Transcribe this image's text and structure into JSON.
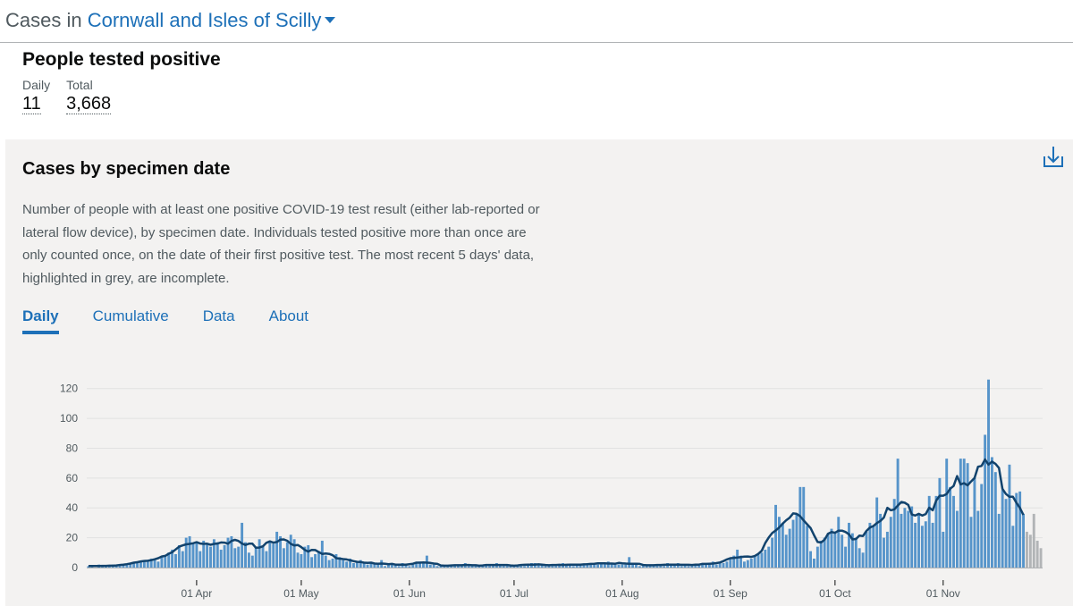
{
  "header": {
    "prefix": "Cases in ",
    "area": "Cornwall and Isles of Scilly"
  },
  "summary": {
    "title": "People tested positive",
    "daily_label": "Daily",
    "daily_value": "11",
    "total_label": "Total",
    "total_value": "3,668"
  },
  "card": {
    "title": "Cases by specimen date",
    "description": "Number of people with at least one positive COVID-19 test result (either lab-reported or lateral flow device), by specimen date. Individuals tested positive more than once are only counted once, on the date of their first positive test. The most recent 5 days' data, highlighted in grey, are incomplete.",
    "download_icon": "download-icon"
  },
  "tabs": [
    {
      "label": "Daily",
      "active": true
    },
    {
      "label": "Cumulative",
      "active": false
    },
    {
      "label": "Data",
      "active": false
    },
    {
      "label": "About",
      "active": false
    }
  ],
  "colors": {
    "bar": "#5694ca",
    "bar_incomplete": "#b1b4b6",
    "average_line": "#12436d",
    "link": "#1d70b8"
  },
  "chart_data": {
    "type": "bar",
    "title": "Cases by specimen date",
    "ylim": [
      0,
      130
    ],
    "yticks": [
      0,
      20,
      40,
      60,
      80,
      100,
      120
    ],
    "x_tick_labels": [
      {
        "label": "01 Apr",
        "day": 31
      },
      {
        "label": "01 May",
        "day": 61
      },
      {
        "label": "01 Jun",
        "day": 92
      },
      {
        "label": "01 Jul",
        "day": 122
      },
      {
        "label": "01 Aug",
        "day": 153
      },
      {
        "label": "01 Sep",
        "day": 184
      },
      {
        "label": "01 Oct",
        "day": 214
      },
      {
        "label": "01 Nov",
        "day": 245
      }
    ],
    "start_date": "2020-03-01",
    "incomplete_last_n": 5,
    "series": [
      {
        "name": "Daily cases",
        "values": [
          1,
          1,
          0,
          2,
          1,
          1,
          1,
          2,
          1,
          1,
          2,
          2,
          3,
          3,
          4,
          4,
          5,
          4,
          6,
          5,
          4,
          7,
          8,
          10,
          12,
          9,
          15,
          11,
          20,
          21,
          16,
          17,
          11,
          18,
          16,
          14,
          19,
          17,
          12,
          15,
          20,
          21,
          13,
          14,
          30,
          17,
          10,
          8,
          14,
          19,
          14,
          11,
          18,
          16,
          24,
          21,
          13,
          17,
          22,
          19,
          10,
          9,
          14,
          15,
          7,
          9,
          11,
          18,
          8,
          5,
          6,
          9,
          7,
          5,
          4,
          6,
          3,
          4,
          5,
          3,
          2,
          3,
          3,
          2,
          5,
          1,
          2,
          3,
          2,
          1,
          3,
          2,
          1,
          2,
          3,
          4,
          3,
          8,
          2,
          2,
          1,
          2,
          1,
          1,
          1,
          1,
          2,
          2,
          3,
          1,
          1,
          2,
          1,
          1,
          2,
          1,
          2,
          3,
          2,
          1,
          1,
          2,
          1,
          2,
          1,
          1,
          2,
          3,
          3,
          2,
          2,
          1,
          2,
          1,
          1,
          2,
          3,
          2,
          2,
          1,
          2,
          2,
          2,
          3,
          2,
          3,
          2,
          3,
          3,
          4,
          3,
          2,
          2,
          2,
          2,
          7,
          2,
          2,
          1,
          2,
          2,
          1,
          2,
          1,
          2,
          1,
          3,
          2,
          2,
          3,
          1,
          2,
          1,
          2,
          2,
          2,
          2,
          3,
          2,
          4,
          2,
          3,
          3,
          4,
          6,
          8,
          12,
          8,
          4,
          5,
          6,
          8,
          9,
          10,
          12,
          14,
          20,
          42,
          34,
          30,
          22,
          26,
          32,
          36,
          54,
          54,
          28,
          11,
          6,
          14,
          18,
          20,
          23,
          26,
          24,
          34,
          22,
          14,
          30,
          23,
          20,
          13,
          10,
          24,
          30,
          28,
          47,
          36,
          20,
          24,
          34,
          46,
          73,
          36,
          40,
          38,
          41,
          30,
          36,
          28,
          31,
          48,
          30,
          48,
          60,
          24,
          73,
          54,
          48,
          38,
          73,
          73,
          70,
          34,
          60,
          38,
          56,
          89,
          126,
          74,
          64,
          36,
          52,
          46,
          69,
          28,
          50,
          51,
          36,
          24,
          22,
          36,
          18,
          13
        ]
      }
    ]
  }
}
